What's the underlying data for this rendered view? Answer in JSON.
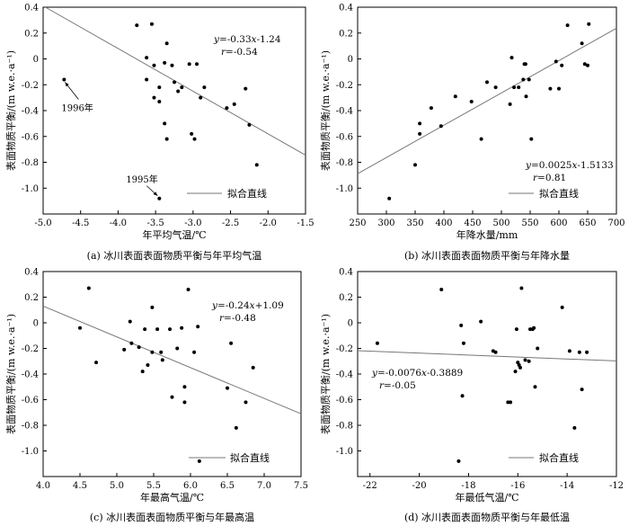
{
  "chart_data": [
    {
      "type": "scatter",
      "caption": "(a) 冰川表面表面物质平衡与年平均气温",
      "xlabel": "年平均气温/℃",
      "ylabel": "表面物质平衡/(m w.e.·a⁻¹)",
      "xlim": [
        -5.0,
        -1.5
      ],
      "ylim": [
        -1.2,
        0.4
      ],
      "xticks": [
        -5.0,
        -4.5,
        -4.0,
        -3.5,
        -3.0,
        -2.5,
        -2.0,
        -1.5
      ],
      "xtick_labels": [
        "-5.0",
        "-4.5",
        "-4.0",
        "-3.5",
        "-3.0",
        "-2.5",
        "-2.0",
        "-1.5"
      ],
      "yticks": [
        -1.2,
        -1.0,
        -0.8,
        -0.6,
        -0.4,
        -0.2,
        0,
        0.2,
        0.4
      ],
      "ytick_labels": [
        "",
        "-1.0",
        "-0.8",
        "-0.6",
        "-0.4",
        "-0.2",
        "0",
        "0.2",
        "0.4"
      ],
      "fit": {
        "slope": -0.33,
        "intercept": -1.24
      },
      "equation": {
        "y": "y",
        "eq": "=-0.33",
        "x": "x",
        "rest": "-1.24",
        "r": "r",
        "r_rest": "=-0.54"
      },
      "legend": "拟合直线",
      "annotations": [
        {
          "text": "1996年",
          "x": -4.72,
          "y": -0.16
        },
        {
          "text": "1995年",
          "x": -3.45,
          "y": -1.08
        }
      ],
      "points": [
        [
          -4.72,
          -0.16
        ],
        [
          -3.75,
          0.26
        ],
        [
          -3.55,
          0.27
        ],
        [
          -3.62,
          0.01
        ],
        [
          -3.62,
          -0.16
        ],
        [
          -3.52,
          -0.05
        ],
        [
          -3.52,
          -0.3
        ],
        [
          -3.45,
          -0.22
        ],
        [
          -3.45,
          -0.33
        ],
        [
          -3.38,
          -0.5
        ],
        [
          -3.35,
          -0.62
        ],
        [
          -3.35,
          0.12
        ],
        [
          -3.38,
          -0.03
        ],
        [
          -3.28,
          -0.05
        ],
        [
          -3.25,
          -0.18
        ],
        [
          -3.2,
          -0.25
        ],
        [
          -3.15,
          -0.22
        ],
        [
          -3.05,
          -0.04
        ],
        [
          -3.02,
          -0.58
        ],
        [
          -2.98,
          -0.62
        ],
        [
          -2.95,
          -0.04
        ],
        [
          -2.9,
          -0.3
        ],
        [
          -2.85,
          -0.22
        ],
        [
          -2.55,
          -0.38
        ],
        [
          -2.45,
          -0.35
        ],
        [
          -2.3,
          -0.23
        ],
        [
          -2.25,
          -0.51
        ],
        [
          -2.15,
          -0.82
        ],
        [
          -3.45,
          -1.08
        ]
      ]
    },
    {
      "type": "scatter",
      "caption": "(b) 冰川表面表面物质平衡与年降水量",
      "xlabel": "年降水量/mm",
      "ylabel": "表面物质平衡/(m w.e.·a⁻¹)",
      "xlim": [
        250,
        700
      ],
      "ylim": [
        -1.2,
        0.4
      ],
      "xticks": [
        250,
        300,
        350,
        400,
        450,
        500,
        550,
        600,
        650,
        700
      ],
      "xtick_labels": [
        "250",
        "300",
        "350",
        "400",
        "450",
        "500",
        "550",
        "600",
        "650",
        "700"
      ],
      "yticks": [
        -1.2,
        -1.0,
        -0.8,
        -0.6,
        -0.4,
        -0.2,
        0,
        0.2,
        0.4
      ],
      "ytick_labels": [
        "",
        "-1.0",
        "-0.8",
        "-0.6",
        "-0.4",
        "-0.2",
        "0",
        "0.2",
        "0.4"
      ],
      "fit": {
        "slope": 0.0025,
        "intercept": -1.5133
      },
      "equation": {
        "y": "y",
        "eq": "=0.0025",
        "x": "x",
        "rest": "-1.5133",
        "r": "r",
        "r_rest": "=0.81"
      },
      "legend": "拟合直线",
      "annotations": [],
      "points": [
        [
          305,
          -1.08
        ],
        [
          350,
          -0.82
        ],
        [
          358,
          -0.5
        ],
        [
          358,
          -0.58
        ],
        [
          378,
          -0.38
        ],
        [
          395,
          -0.52
        ],
        [
          420,
          -0.29
        ],
        [
          448,
          -0.33
        ],
        [
          465,
          -0.62
        ],
        [
          475,
          -0.18
        ],
        [
          490,
          -0.22
        ],
        [
          515,
          -0.35
        ],
        [
          518,
          0.01
        ],
        [
          522,
          -0.22
        ],
        [
          530,
          -0.22
        ],
        [
          538,
          -0.16
        ],
        [
          540,
          -0.04
        ],
        [
          542,
          -0.04
        ],
        [
          543,
          -0.29
        ],
        [
          548,
          -0.16
        ],
        [
          552,
          -0.62
        ],
        [
          585,
          -0.23
        ],
        [
          595,
          -0.02
        ],
        [
          600,
          -0.23
        ],
        [
          605,
          -0.05
        ],
        [
          615,
          0.26
        ],
        [
          640,
          0.12
        ],
        [
          645,
          -0.04
        ],
        [
          650,
          -0.05
        ],
        [
          652,
          0.27
        ]
      ]
    },
    {
      "type": "scatter",
      "caption": "(c) 冰川表面表面物质平衡与年最高温",
      "xlabel": "年最高气温/℃",
      "ylabel": "表面物质平衡/(m w.e.·a⁻¹)",
      "xlim": [
        4.0,
        7.5
      ],
      "ylim": [
        -1.2,
        0.4
      ],
      "xticks": [
        4.0,
        4.5,
        5.0,
        5.5,
        6.0,
        6.5,
        7.0,
        7.5
      ],
      "xtick_labels": [
        "4.0",
        "4.5",
        "5.0",
        "5.5",
        "6.0",
        "6.5",
        "7.0",
        "7.5"
      ],
      "yticks": [
        -1.2,
        -1.0,
        -0.8,
        -0.6,
        -0.4,
        -0.2,
        0,
        0.2,
        0.4
      ],
      "ytick_labels": [
        "",
        "-1.0",
        "-0.8",
        "-0.6",
        "-0.4",
        "-0.2",
        "0",
        "0.2",
        "0.4"
      ],
      "fit": {
        "slope": -0.24,
        "intercept": 1.09
      },
      "equation": {
        "y": "y",
        "eq": "=-0.24",
        "x": "x",
        "rest": "+1.09",
        "r": "r",
        "r_rest": "=-0.48"
      },
      "legend": "拟合直线",
      "annotations": [],
      "points": [
        [
          4.5,
          -0.04
        ],
        [
          4.62,
          0.27
        ],
        [
          4.72,
          -0.31
        ],
        [
          5.1,
          -0.21
        ],
        [
          5.18,
          0.01
        ],
        [
          5.2,
          -0.16
        ],
        [
          5.3,
          -0.19
        ],
        [
          5.35,
          -0.38
        ],
        [
          5.38,
          -0.05
        ],
        [
          5.42,
          -0.33
        ],
        [
          5.48,
          -0.23
        ],
        [
          5.48,
          0.12
        ],
        [
          5.55,
          -0.05
        ],
        [
          5.6,
          -0.23
        ],
        [
          5.62,
          -0.29
        ],
        [
          5.72,
          -0.05
        ],
        [
          5.75,
          -0.58
        ],
        [
          5.82,
          -0.2
        ],
        [
          5.88,
          -0.04
        ],
        [
          5.92,
          -0.5
        ],
        [
          5.92,
          -0.62
        ],
        [
          5.97,
          0.26
        ],
        [
          6.05,
          -0.23
        ],
        [
          6.1,
          -0.03
        ],
        [
          6.12,
          -1.08
        ],
        [
          6.5,
          -0.51
        ],
        [
          6.55,
          -0.16
        ],
        [
          6.62,
          -0.82
        ],
        [
          6.75,
          -0.62
        ],
        [
          6.85,
          -0.35
        ]
      ]
    },
    {
      "type": "scatter",
      "caption": "(d) 冰川表面表面物质平衡与年最低温",
      "xlabel": "年最低气温/℃",
      "ylabel": "表面物质平衡/(m w.e.·a⁻¹)",
      "xlim": [
        -22.5,
        -12
      ],
      "ylim": [
        -1.2,
        0.4
      ],
      "xticks": [
        -22,
        -20,
        -18,
        -16,
        -14,
        -12
      ],
      "xtick_labels": [
        "-22",
        "-20",
        "-18",
        "-16",
        "-14",
        "-12"
      ],
      "yticks": [
        -1.2,
        -1.0,
        -0.8,
        -0.6,
        -0.4,
        -0.2,
        0,
        0.2,
        0.4
      ],
      "ytick_labels": [
        "",
        "-1.0",
        "-0.8",
        "-0.6",
        "-0.4",
        "-0.2",
        "0",
        "0.2",
        "0.4"
      ],
      "fit": {
        "slope": -0.0076,
        "intercept": -0.3889
      },
      "equation": {
        "y": "y",
        "eq": "=-0.0076",
        "x": "x",
        "rest": "-0.3889",
        "r": "r",
        "r_rest": "=-0.05"
      },
      "legend": "拟合直线",
      "annotations": [],
      "points": [
        [
          -21.7,
          -0.16
        ],
        [
          -19.1,
          0.26
        ],
        [
          -18.4,
          -1.08
        ],
        [
          -18.3,
          -0.02
        ],
        [
          -18.2,
          -0.16
        ],
        [
          -18.25,
          -0.57
        ],
        [
          -17.5,
          0.01
        ],
        [
          -17.0,
          -0.22
        ],
        [
          -16.9,
          -0.23
        ],
        [
          -16.4,
          -0.62
        ],
        [
          -16.3,
          -0.62
        ],
        [
          -16.1,
          -0.38
        ],
        [
          -16.05,
          -0.05
        ],
        [
          -16.0,
          -0.31
        ],
        [
          -15.95,
          -0.33
        ],
        [
          -15.9,
          -0.35
        ],
        [
          -15.85,
          0.27
        ],
        [
          -15.7,
          -0.29
        ],
        [
          -15.55,
          -0.3
        ],
        [
          -15.5,
          -0.05
        ],
        [
          -15.4,
          -0.05
        ],
        [
          -15.35,
          -0.04
        ],
        [
          -15.3,
          -0.5
        ],
        [
          -15.2,
          -0.2
        ],
        [
          -14.2,
          0.12
        ],
        [
          -13.9,
          -0.22
        ],
        [
          -13.7,
          -0.82
        ],
        [
          -13.5,
          -0.23
        ],
        [
          -13.4,
          -0.52
        ],
        [
          -13.2,
          -0.23
        ]
      ]
    }
  ]
}
